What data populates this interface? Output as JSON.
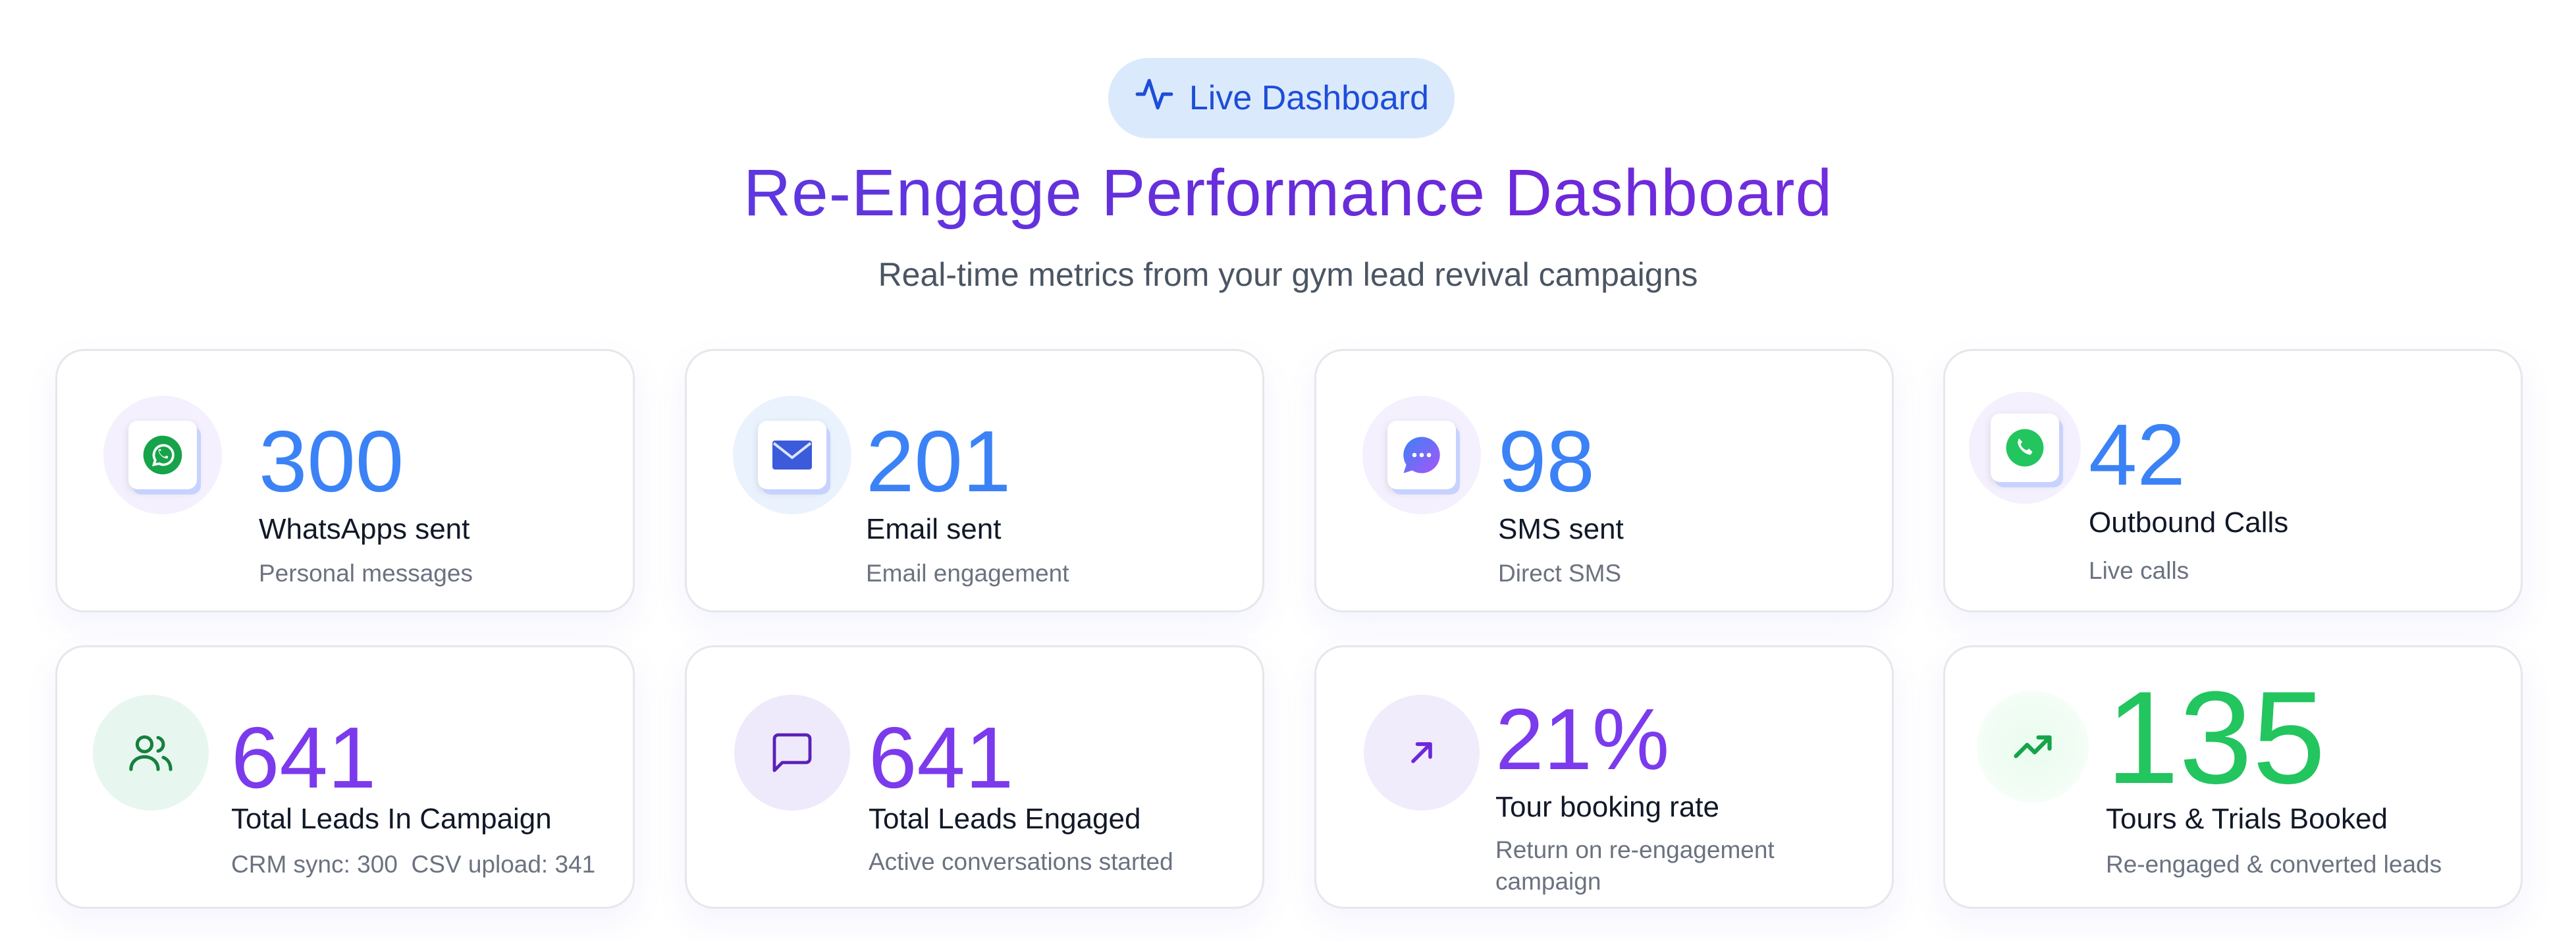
{
  "header": {
    "badge_label": "Live Dashboard",
    "title": "Re-Engage Performance Dashboard",
    "subtitle": "Real-time metrics from your gym lead revival campaigns"
  },
  "colors": {
    "accent_blue": "#3b82f6",
    "accent_purple": "#7c3aed",
    "accent_green": "#22c55e",
    "badge_bg": "#dbe9fc"
  },
  "cards": [
    {
      "icon": "whatsapp-icon",
      "value": "300",
      "label": "WhatsApps sent",
      "sub": "Personal messages"
    },
    {
      "icon": "email-icon",
      "value": "201",
      "label": "Email sent",
      "sub": "Email engagement"
    },
    {
      "icon": "sms-icon",
      "value": "98",
      "label": "SMS sent",
      "sub": "Direct SMS"
    },
    {
      "icon": "phone-icon",
      "value": "42",
      "label": "Outbound Calls",
      "sub": "Live calls"
    },
    {
      "icon": "users-icon",
      "value": "641",
      "label": "Total Leads In Campaign",
      "sub": "CRM sync: 300  CSV upload: 341"
    },
    {
      "icon": "message-square-icon",
      "value": "641",
      "label": "Total Leads Engaged",
      "sub": "Active conversations started"
    },
    {
      "icon": "arrow-up-right-icon",
      "value": "21%",
      "label": "Tour booking rate",
      "sub": "Return on re-engagement campaign"
    },
    {
      "icon": "trending-up-icon",
      "value": "135",
      "label": "Tours & Trials Booked",
      "sub": "Re-engaged & converted leads"
    }
  ]
}
